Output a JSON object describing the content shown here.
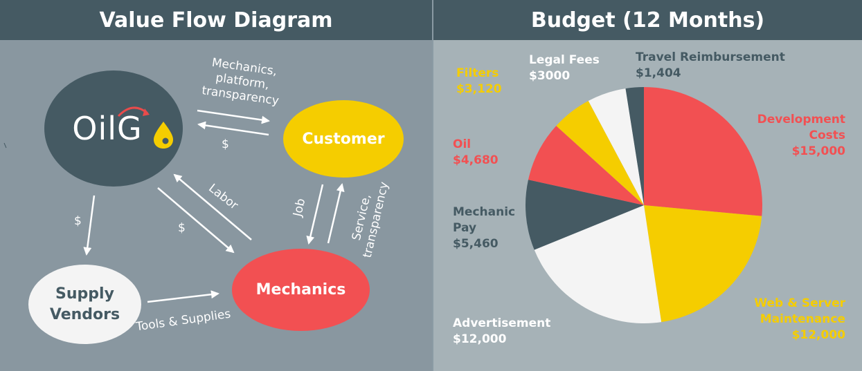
{
  "left": {
    "title": "Value Flow Diagram",
    "nodes": {
      "oilgo": "OilG",
      "customer": "Customer",
      "mechanics": "Mechanics",
      "supply_line1": "Supply",
      "supply_line2": "Vendors"
    },
    "flows": {
      "oilgo_to_customer": [
        "Mechanics,",
        "platform,",
        "transparency"
      ],
      "customer_to_oilgo": "$",
      "mechanics_to_oilgo": "Labor",
      "oilgo_to_mechanics": "$",
      "customer_to_mechanics": "Job",
      "mechanics_to_customer": [
        "Service,",
        "transparency"
      ],
      "oilgo_to_supply": "$",
      "supply_to_mechanics": "Tools & Supplies"
    }
  },
  "right": {
    "title": "Budget (12 Months)",
    "colors": {
      "dark": "#455a63",
      "red": "#f25052",
      "yellow": "#f5cd00",
      "white": "#f4f4f4"
    },
    "chart_data": {
      "type": "pie",
      "title": "Budget (12 Months)",
      "slices": [
        {
          "label": "Development Costs",
          "value": 15000,
          "display": "$15,000",
          "color": "#f25052"
        },
        {
          "label": "Web & Server Maintenance",
          "value": 12000,
          "display": "$12,000",
          "color": "#f5cd00"
        },
        {
          "label": "Advertisement",
          "value": 12000,
          "display": "$12,000",
          "color": "#f4f4f4"
        },
        {
          "label": "Mechanic Pay",
          "value": 5460,
          "display": "$5,460",
          "color": "#455a63"
        },
        {
          "label": "Oil",
          "value": 4680,
          "display": "$4,680",
          "color": "#f25052"
        },
        {
          "label": "Filters",
          "value": 3120,
          "display": "$3,120",
          "color": "#f5cd00"
        },
        {
          "label": "Legal Fees",
          "value": 3000,
          "display": "$3000",
          "color": "#f4f4f4"
        },
        {
          "label": "Travel Reimbursement",
          "value": 1404,
          "display": "$1,404",
          "color": "#455a63"
        }
      ]
    }
  }
}
